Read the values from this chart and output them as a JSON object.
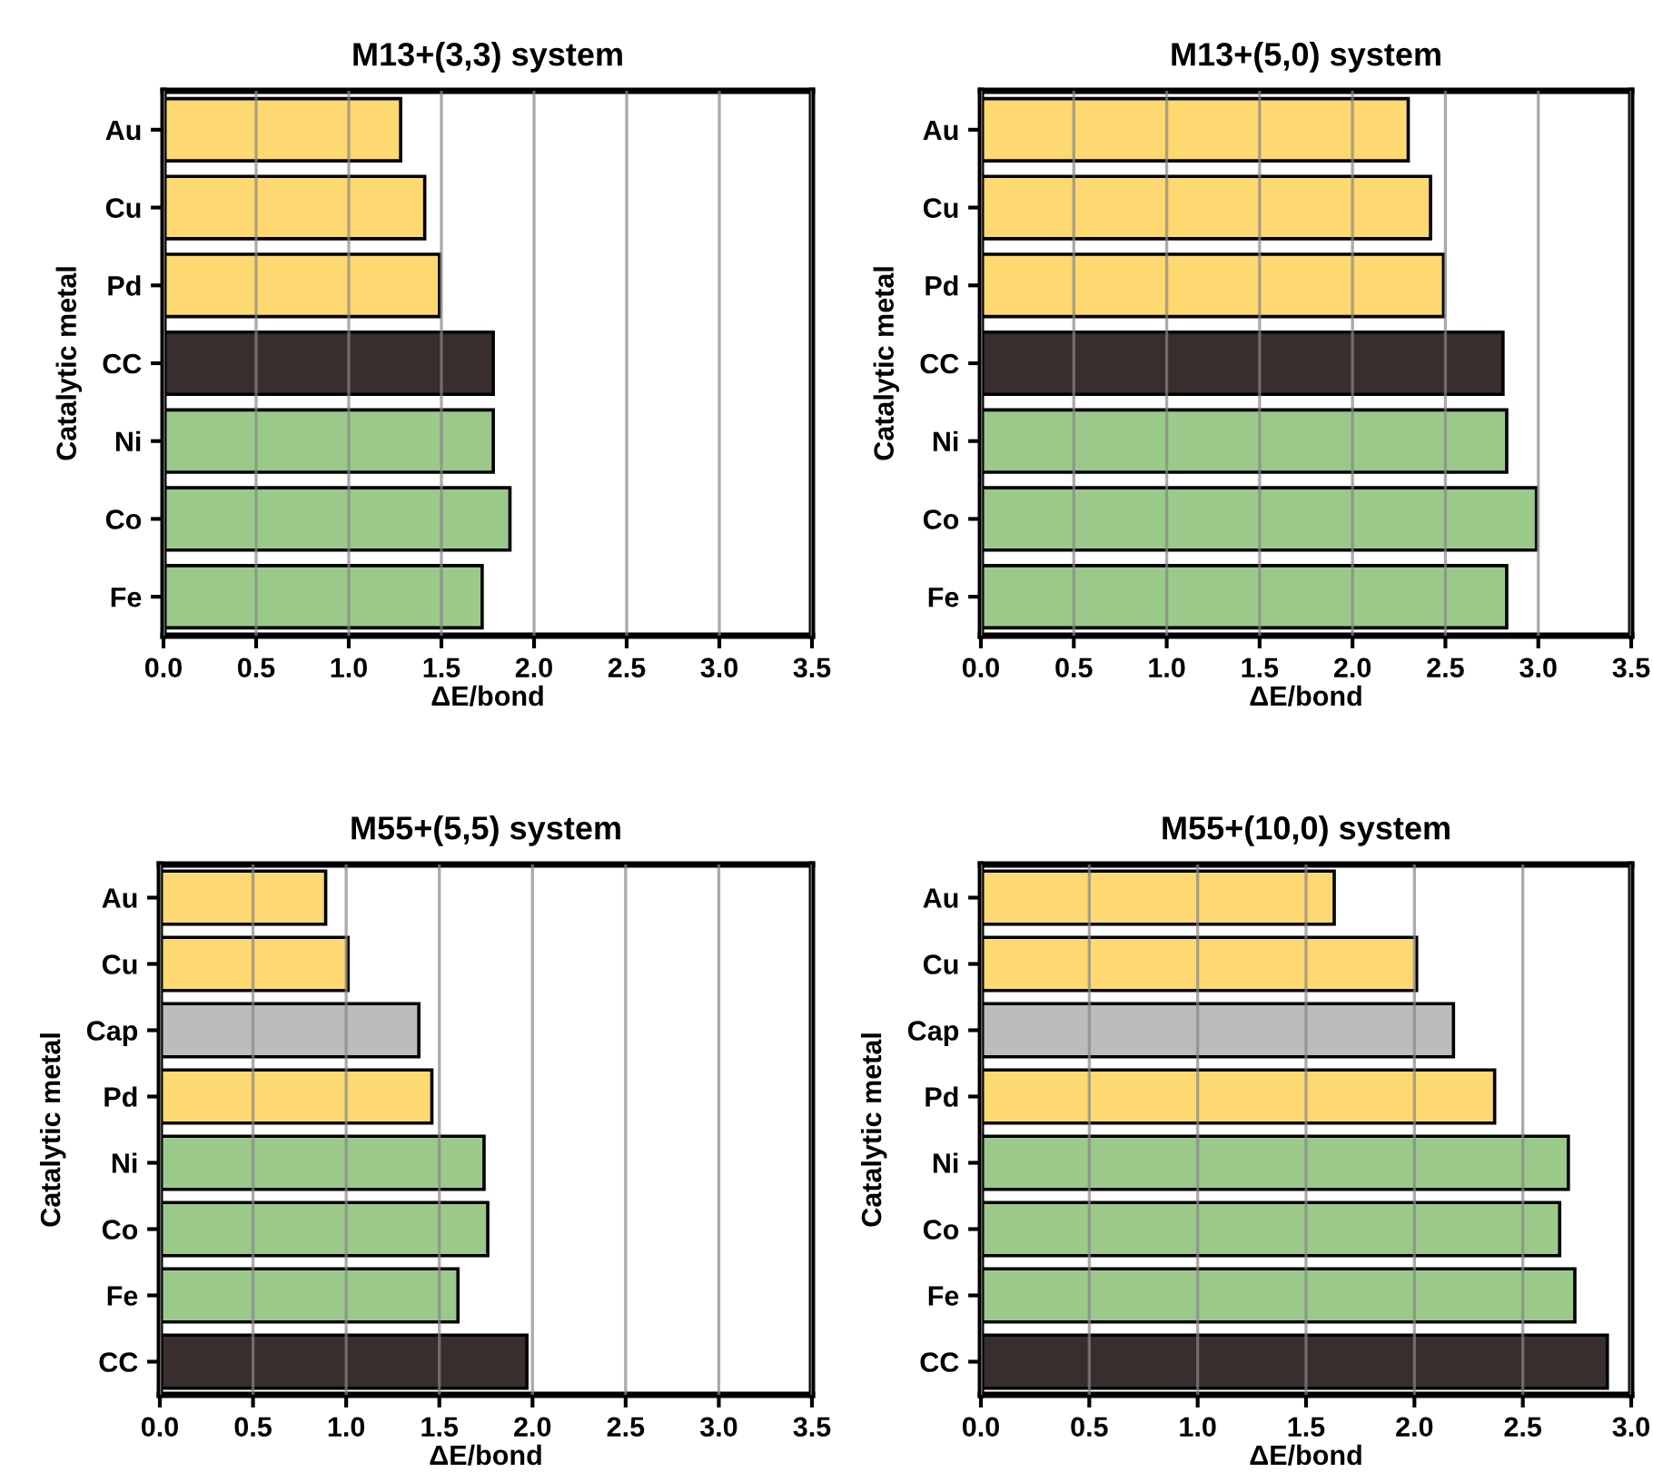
{
  "chart_data": [
    {
      "type": "bar",
      "orientation": "horizontal",
      "title": "M13+(3,3) system",
      "xlabel": "ΔE/bond",
      "ylabel": "Catalytic metal",
      "categories": [
        "Au",
        "Cu",
        "Pd",
        "CC",
        "Ni",
        "Co",
        "Fe"
      ],
      "values": [
        1.28,
        1.41,
        1.49,
        1.78,
        1.78,
        1.87,
        1.72
      ],
      "colors": [
        "#fed870",
        "#fed870",
        "#fed870",
        "#372e2d",
        "#9bc98a",
        "#9bc98a",
        "#9bc98a"
      ],
      "xlim": [
        0,
        3.5
      ],
      "xticks": [
        {
          "value": 0,
          "label": "0.0"
        },
        0.5,
        {
          "value": 1,
          "label": "1.0"
        },
        1.5,
        {
          "value": 2,
          "label": "2.0"
        },
        2.5,
        {
          "value": 3,
          "label": "3.0"
        },
        3.5
      ],
      "grid": "x"
    },
    {
      "type": "bar",
      "orientation": "horizontal",
      "title": "M13+(5,0) system",
      "xlabel": "ΔE/bond",
      "ylabel": "Catalytic metal",
      "categories": [
        "Au",
        "Cu",
        "Pd",
        "CC",
        "Ni",
        "Co",
        "Fe"
      ],
      "values": [
        2.3,
        2.42,
        2.49,
        2.81,
        2.83,
        2.99,
        2.83
      ],
      "colors": [
        "#fed870",
        "#fed870",
        "#fed870",
        "#372e2d",
        "#9bc98a",
        "#9bc98a",
        "#9bc98a"
      ],
      "xlim": [
        0,
        3.5
      ],
      "xticks": [
        {
          "value": 0,
          "label": "0.0"
        },
        0.5,
        {
          "value": 1,
          "label": "1.0"
        },
        1.5,
        {
          "value": 2,
          "label": "2.0"
        },
        2.5,
        {
          "value": 3,
          "label": "3.0"
        },
        3.5
      ],
      "grid": "x"
    },
    {
      "type": "bar",
      "orientation": "horizontal",
      "title": "M55+(5,5) system",
      "xlabel": "ΔE/bond",
      "ylabel": "Catalytic metal",
      "categories": [
        "Au",
        "Cu",
        "Cap",
        "Pd",
        "Ni",
        "Co",
        "Fe",
        "CC"
      ],
      "values": [
        0.89,
        1.01,
        1.39,
        1.46,
        1.74,
        1.76,
        1.6,
        1.97
      ],
      "colors": [
        "#fed870",
        "#fed870",
        "#bdbcba",
        "#fed870",
        "#9bc98a",
        "#9bc98a",
        "#9bc98a",
        "#372e2d"
      ],
      "xlim": [
        0,
        3.5
      ],
      "xticks": [
        {
          "value": 0,
          "label": "0.0"
        },
        0.5,
        {
          "value": 1,
          "label": "1.0"
        },
        1.5,
        {
          "value": 2,
          "label": "2.0"
        },
        2.5,
        {
          "value": 3,
          "label": "3.0"
        },
        3.5
      ],
      "grid": "x"
    },
    {
      "type": "bar",
      "orientation": "horizontal",
      "title": "M55+(10,0) system",
      "xlabel": "ΔE/bond",
      "ylabel": "Catalytic metal",
      "categories": [
        "Au",
        "Cu",
        "Cap",
        "Pd",
        "Ni",
        "Co",
        "Fe",
        "CC"
      ],
      "values": [
        1.63,
        2.01,
        2.18,
        2.37,
        2.71,
        2.67,
        2.74,
        2.89
      ],
      "colors": [
        "#fed870",
        "#fed870",
        "#bdbcba",
        "#fed870",
        "#9bc98a",
        "#9bc98a",
        "#9bc98a",
        "#372e2d"
      ],
      "xlim": [
        0,
        3.0
      ],
      "xticks": [
        {
          "value": 0,
          "label": "0.0"
        },
        0.5,
        {
          "value": 1,
          "label": "1.0"
        },
        1.5,
        {
          "value": 2,
          "label": "2.0"
        },
        2.5,
        {
          "value": 3,
          "label": "3.0"
        }
      ],
      "grid": "x"
    }
  ]
}
